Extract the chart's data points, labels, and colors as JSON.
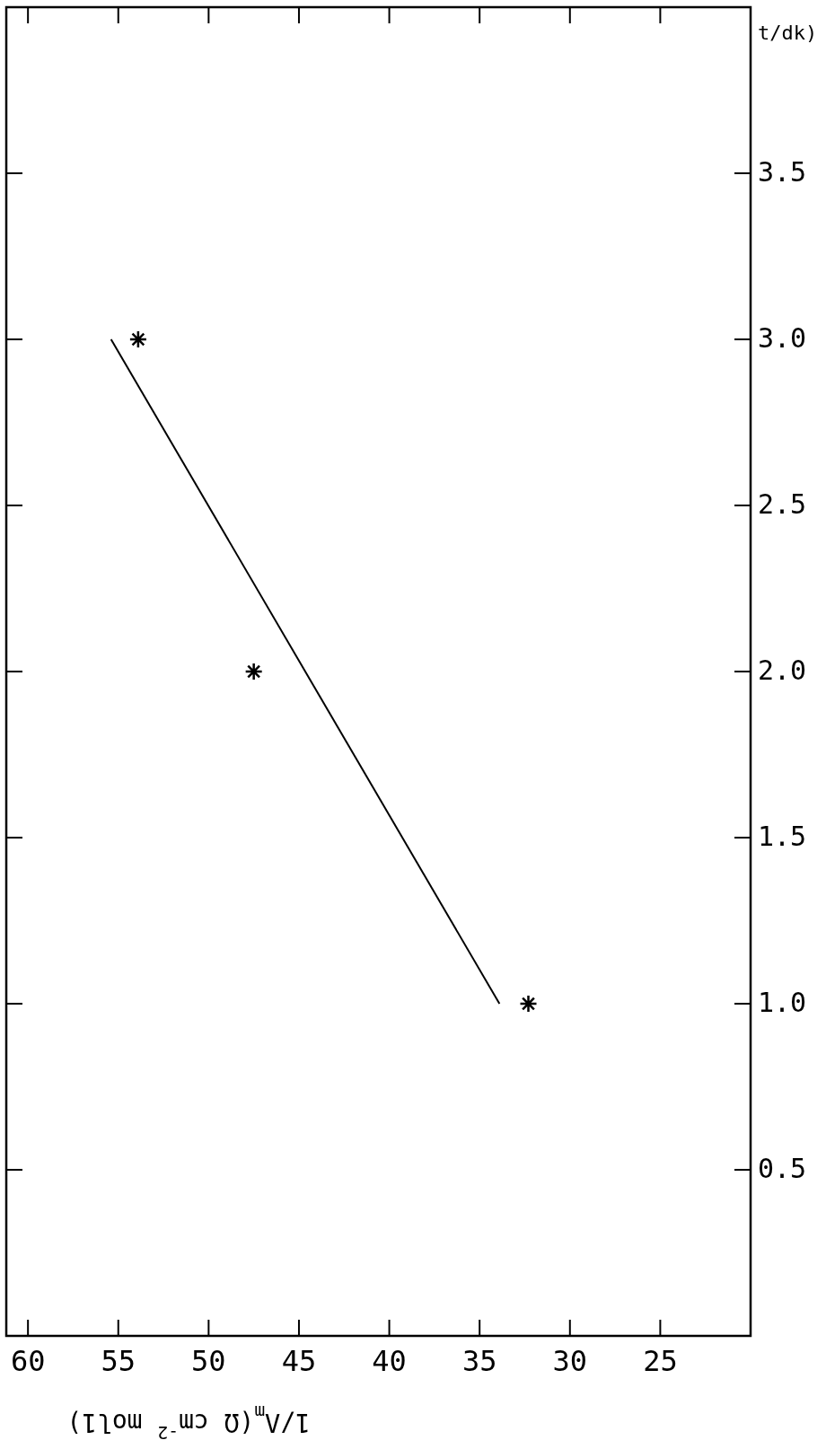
{
  "chart_data": {
    "type": "scatter",
    "xlabel": "1/Λ$_{m}$(Ω cm$^{-2}$ mol1)",
    "ylabel": "t/dk)",
    "xlim": [
      61.2,
      20
    ],
    "ylim": [
      0,
      4
    ],
    "xticks": [
      60,
      55,
      50,
      45,
      40,
      35,
      30,
      25
    ],
    "yticks": [
      0.5,
      {
        "value": 1,
        "label": "1.0"
      },
      1.5,
      {
        "value": 2,
        "label": "2.0"
      },
      2.5,
      {
        "value": 3,
        "label": "3.0"
      },
      3.5
    ],
    "grid": false,
    "series": [
      {
        "color": "#000000",
        "marker": "cross",
        "x": [
          32.3,
          47.5,
          53.9
        ],
        "values": [
          1,
          2,
          3
        ]
      },
      {
        "type": "line",
        "color": "#000000",
        "marker": "none",
        "line_style": "solid",
        "x": [
          33.9,
          55.4
        ],
        "values": [
          1,
          3
        ]
      }
    ]
  }
}
